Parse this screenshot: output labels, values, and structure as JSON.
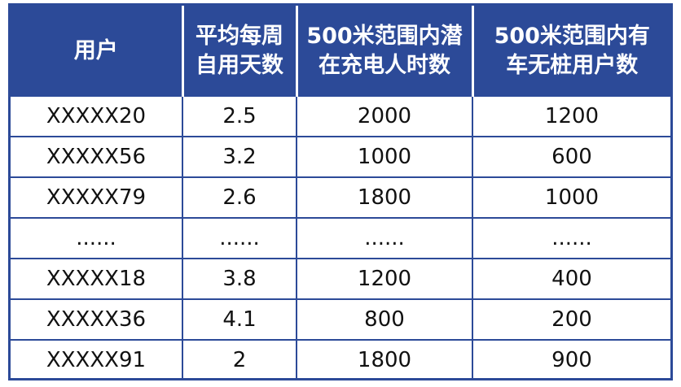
{
  "table": {
    "header": [
      [
        "用户"
      ],
      [
        "平均每周",
        "自用天数"
      ],
      [
        "500米范围内潜",
        "在充电人时数"
      ],
      [
        "500米范围内有",
        "车无桩用户数"
      ]
    ],
    "rows": [
      [
        "XXXXX20",
        "2.5",
        "2000",
        "1200"
      ],
      [
        "XXXXX56",
        "3.2",
        "1000",
        "600"
      ],
      [
        "XXXXX79",
        "2.6",
        "1800",
        "1000"
      ],
      [
        "......",
        "......",
        "......",
        "......"
      ],
      [
        "XXXXX18",
        "3.8",
        "1200",
        "400"
      ],
      [
        "XXXXX36",
        "4.1",
        "800",
        "200"
      ],
      [
        "XXXXX91",
        "2",
        "1800",
        "900"
      ]
    ]
  }
}
